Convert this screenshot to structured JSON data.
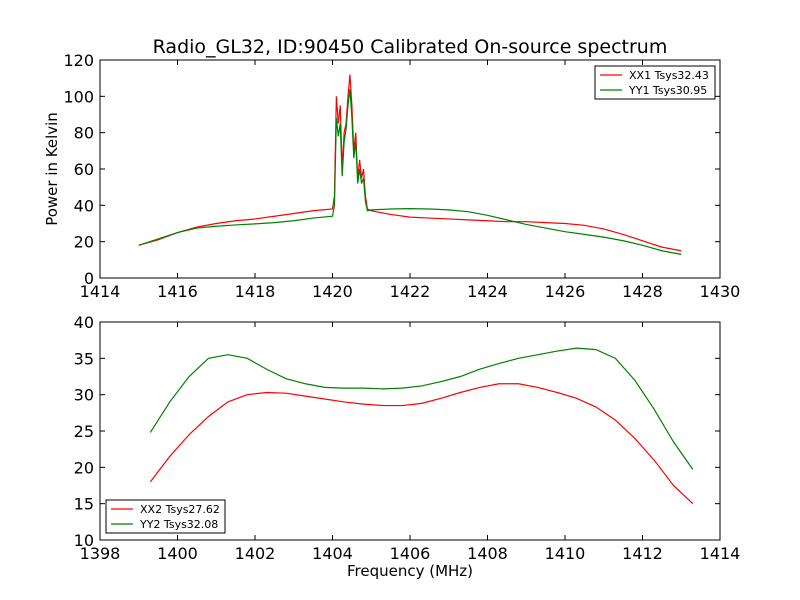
{
  "chart_data": [
    {
      "type": "line",
      "title": "Radio_GL32, ID:90450 Calibrated On-source spectrum",
      "xlabel": "",
      "ylabel": "Power in Kelvin",
      "xlim": [
        1414,
        1430
      ],
      "ylim": [
        0,
        120
      ],
      "xticks": [
        "1414",
        "1416",
        "1418",
        "1420",
        "1422",
        "1424",
        "1426",
        "1428",
        "1430"
      ],
      "yticks": [
        "0",
        "20",
        "40",
        "60",
        "80",
        "100",
        "120"
      ],
      "grid": false,
      "legend_position": "top-right",
      "series": [
        {
          "name": "XX1 Tsys32.43",
          "color": "#ff0000",
          "x": [
            1415.0,
            1415.5,
            1416.0,
            1416.5,
            1417.0,
            1417.5,
            1418.0,
            1418.5,
            1419.0,
            1419.5,
            1420.0,
            1420.05,
            1420.1,
            1420.15,
            1420.2,
            1420.25,
            1420.3,
            1420.35,
            1420.4,
            1420.45,
            1420.5,
            1420.55,
            1420.6,
            1420.65,
            1420.7,
            1420.75,
            1420.8,
            1420.85,
            1420.9,
            1421.0,
            1421.5,
            1422.0,
            1422.5,
            1423.0,
            1423.5,
            1424.0,
            1424.5,
            1425.0,
            1425.5,
            1426.0,
            1426.5,
            1427.0,
            1427.5,
            1428.0,
            1428.5,
            1429.0
          ],
          "y": [
            18,
            21,
            25,
            28,
            30,
            31.5,
            32.5,
            34,
            35.5,
            37,
            38,
            45,
            100,
            85,
            95,
            60,
            80,
            85,
            100,
            112,
            95,
            70,
            80,
            55,
            65,
            55,
            60,
            45,
            38,
            37,
            35,
            33.5,
            33,
            32.5,
            32,
            31.5,
            31,
            31,
            30.5,
            30,
            29,
            27,
            24,
            20.5,
            17,
            15
          ]
        },
        {
          "name": "YY1 Tsys30.95",
          "color": "#008000",
          "x": [
            1415.0,
            1415.5,
            1416.0,
            1416.5,
            1417.0,
            1417.5,
            1418.0,
            1418.5,
            1419.0,
            1419.5,
            1420.0,
            1420.05,
            1420.1,
            1420.15,
            1420.2,
            1420.25,
            1420.3,
            1420.35,
            1420.4,
            1420.45,
            1420.5,
            1420.55,
            1420.6,
            1420.65,
            1420.7,
            1420.75,
            1420.8,
            1420.85,
            1420.9,
            1421.0,
            1421.5,
            1422.0,
            1422.5,
            1423.0,
            1423.5,
            1424.0,
            1424.5,
            1425.0,
            1425.5,
            1426.0,
            1426.5,
            1427.0,
            1427.5,
            1428.0,
            1428.5,
            1429.0
          ],
          "y": [
            18,
            21.5,
            25,
            27.5,
            28.5,
            29.2,
            29.8,
            30.5,
            31.5,
            33,
            34,
            40,
            88,
            78,
            85,
            56,
            75,
            82,
            95,
            104,
            88,
            66,
            75,
            52,
            60,
            52,
            55,
            42,
            37,
            37.5,
            38,
            38.2,
            38,
            37.5,
            36.5,
            34.5,
            32,
            29.5,
            27.5,
            25.5,
            24,
            22.5,
            20.5,
            18,
            15,
            13
          ]
        }
      ]
    },
    {
      "type": "line",
      "title": "",
      "xlabel": "Frequency (MHz)",
      "ylabel": "",
      "xlim": [
        1398,
        1414
      ],
      "ylim": [
        10,
        40
      ],
      "xticks": [
        "1398",
        "1400",
        "1402",
        "1404",
        "1406",
        "1408",
        "1410",
        "1412",
        "1414"
      ],
      "yticks": [
        "10",
        "15",
        "20",
        "25",
        "30",
        "35",
        "40"
      ],
      "grid": false,
      "legend_position": "bottom-left",
      "series": [
        {
          "name": "XX2 Tsys27.62",
          "color": "#ff0000",
          "x": [
            1399.3,
            1399.8,
            1400.3,
            1400.8,
            1401.3,
            1401.8,
            1402.3,
            1402.8,
            1403.3,
            1403.8,
            1404.3,
            1404.8,
            1405.3,
            1405.8,
            1406.3,
            1406.8,
            1407.3,
            1407.8,
            1408.3,
            1408.8,
            1409.3,
            1409.8,
            1410.3,
            1410.8,
            1411.3,
            1411.8,
            1412.3,
            1412.8,
            1413.3
          ],
          "y": [
            18,
            21.5,
            24.5,
            27,
            29,
            30,
            30.3,
            30.2,
            29.8,
            29.4,
            29,
            28.7,
            28.5,
            28.5,
            28.8,
            29.5,
            30.3,
            31,
            31.5,
            31.5,
            31,
            30.3,
            29.5,
            28.3,
            26.5,
            24,
            21,
            17.5,
            15
          ]
        },
        {
          "name": "YY2 Tsys32.08",
          "color": "#008000",
          "x": [
            1399.3,
            1399.8,
            1400.3,
            1400.8,
            1401.3,
            1401.8,
            1402.3,
            1402.8,
            1403.3,
            1403.8,
            1404.3,
            1404.8,
            1405.3,
            1405.8,
            1406.3,
            1406.8,
            1407.3,
            1407.8,
            1408.3,
            1408.8,
            1409.3,
            1409.8,
            1410.3,
            1410.8,
            1411.3,
            1411.8,
            1412.3,
            1412.8,
            1413.3
          ],
          "y": [
            24.8,
            29,
            32.5,
            35,
            35.5,
            35,
            33.5,
            32.2,
            31.5,
            31,
            30.9,
            30.9,
            30.8,
            30.9,
            31.2,
            31.8,
            32.5,
            33.5,
            34.3,
            35,
            35.5,
            36,
            36.4,
            36.2,
            35,
            32,
            28,
            23.5,
            19.7
          ]
        }
      ]
    }
  ]
}
